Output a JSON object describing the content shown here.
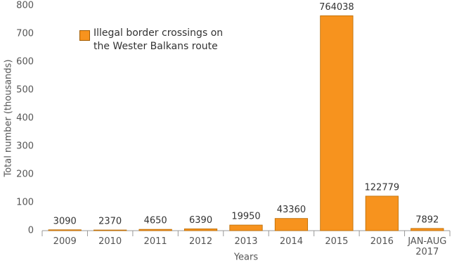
{
  "chart_data": {
    "type": "bar",
    "x_label": "Years",
    "y_label": "Total number (thousands)",
    "categories": [
      "2009",
      "2010",
      "2011",
      "2012",
      "2013",
      "2014",
      "2015",
      "2016",
      "JAN-AUG 2017"
    ],
    "series": [
      {
        "name": "Illegal border crossings on the Wester Balkans route",
        "color": "#f7931e",
        "values": [
          3.09,
          2.37,
          4.65,
          6.39,
          19.95,
          43.36,
          764.038,
          122.779,
          7.892
        ],
        "value_labels": [
          "3090",
          "2370",
          "4650",
          "6390",
          "19950",
          "43360",
          "764038",
          "122779",
          "7892"
        ]
      }
    ],
    "ylim": [
      0,
      800
    ],
    "yticks": [
      0,
      100,
      200,
      300,
      400,
      500,
      600,
      700,
      800
    ]
  }
}
